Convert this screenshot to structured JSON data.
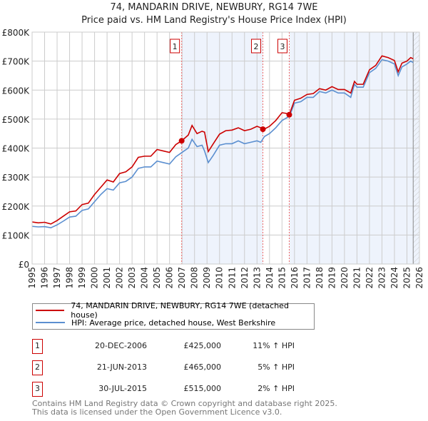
{
  "title": "74, MANDARIN DRIVE, NEWBURY, RG14 7WE",
  "subtitle": "Price paid vs. HM Land Registry's House Price Index (HPI)",
  "chart_data": {
    "type": "line",
    "xlim": [
      1995,
      2026
    ],
    "ylim": [
      0,
      800000
    ],
    "y_ticks": [
      {
        "v": 0,
        "label": "£0"
      },
      {
        "v": 100000,
        "label": "£100K"
      },
      {
        "v": 200000,
        "label": "£200K"
      },
      {
        "v": 300000,
        "label": "£300K"
      },
      {
        "v": 400000,
        "label": "£400K"
      },
      {
        "v": 500000,
        "label": "£500K"
      },
      {
        "v": 600000,
        "label": "£600K"
      },
      {
        "v": 700000,
        "label": "£700K"
      },
      {
        "v": 800000,
        "label": "£800K"
      }
    ],
    "x_ticks": [
      "1995",
      "1996",
      "1997",
      "1998",
      "1999",
      "2000",
      "2001",
      "2002",
      "2003",
      "2004",
      "2005",
      "2006",
      "2007",
      "2008",
      "2009",
      "2010",
      "2011",
      "2012",
      "2013",
      "2014",
      "2015",
      "2016",
      "2017",
      "2018",
      "2019",
      "2020",
      "2021",
      "2022",
      "2023",
      "2024",
      "2025",
      "2026"
    ],
    "grid": true,
    "series": [
      {
        "name": "74, MANDARIN DRIVE, NEWBURY, RG14 7WE (detached house)",
        "color": "#cc0000",
        "x": [
          1995,
          1995.5,
          1996,
          1996.5,
          1997,
          1997.5,
          1998,
          1998.5,
          1999,
          1999.5,
          2000,
          2000.5,
          2001,
          2001.5,
          2002,
          2002.5,
          2003,
          2003.5,
          2004,
          2004.5,
          2005,
          2005.5,
          2006,
          2006.5,
          2006.97,
          2007.5,
          2007.8,
          2008.2,
          2008.6,
          2008.8,
          2009.1,
          2009.5,
          2010,
          2010.5,
          2011,
          2011.5,
          2012,
          2012.5,
          2013,
          2013.3,
          2013.47,
          2013.7,
          2014,
          2014.5,
          2015,
          2015.3,
          2015.58,
          2016,
          2016.5,
          2017,
          2017.5,
          2018,
          2018.5,
          2019,
          2019.5,
          2020,
          2020.5,
          2020.8,
          2021,
          2021.5,
          2022,
          2022.5,
          2023,
          2023.5,
          2024,
          2024.3,
          2024.6,
          2025,
          2025.3,
          2025.5
        ],
        "y": [
          145000,
          142000,
          144000,
          138000,
          150000,
          165000,
          180000,
          183000,
          205000,
          210000,
          240000,
          265000,
          290000,
          283000,
          312000,
          318000,
          335000,
          368000,
          372000,
          372000,
          395000,
          390000,
          385000,
          412000,
          425000,
          445000,
          478000,
          450000,
          458000,
          455000,
          388000,
          415000,
          448000,
          460000,
          462000,
          470000,
          460000,
          465000,
          475000,
          470000,
          465000,
          468000,
          475000,
          495000,
          522000,
          520000,
          515000,
          565000,
          572000,
          585000,
          588000,
          605000,
          600000,
          612000,
          602000,
          602000,
          590000,
          630000,
          620000,
          620000,
          670000,
          685000,
          718000,
          712000,
          702000,
          663000,
          693000,
          700000,
          712000,
          708000
        ]
      },
      {
        "name": "HPI: Average price, detached house, West Berkshire",
        "color": "#5b8fd0",
        "x": [
          1995,
          1995.5,
          1996,
          1996.5,
          1997,
          1997.5,
          1998,
          1998.5,
          1999,
          1999.5,
          2000,
          2000.5,
          2001,
          2001.5,
          2002,
          2002.5,
          2003,
          2003.5,
          2004,
          2004.5,
          2005,
          2005.5,
          2006,
          2006.5,
          2007,
          2007.5,
          2007.8,
          2008.2,
          2008.6,
          2008.8,
          2009.1,
          2009.5,
          2010,
          2010.5,
          2011,
          2011.5,
          2012,
          2012.5,
          2013,
          2013.3,
          2013.6,
          2014,
          2014.5,
          2015,
          2015.6,
          2016,
          2016.5,
          2017,
          2017.5,
          2018,
          2018.5,
          2019,
          2019.5,
          2020,
          2020.5,
          2020.8,
          2021,
          2021.5,
          2022,
          2022.5,
          2023,
          2023.5,
          2024,
          2024.3,
          2024.6,
          2025,
          2025.3,
          2025.5
        ],
        "y": [
          130000,
          128000,
          129000,
          125000,
          135000,
          148000,
          162000,
          165000,
          185000,
          190000,
          215000,
          240000,
          260000,
          255000,
          280000,
          285000,
          300000,
          330000,
          335000,
          335000,
          355000,
          350000,
          345000,
          370000,
          385000,
          400000,
          430000,
          405000,
          410000,
          390000,
          350000,
          375000,
          410000,
          415000,
          415000,
          425000,
          415000,
          420000,
          425000,
          420000,
          440000,
          450000,
          470000,
          495000,
          510000,
          555000,
          560000,
          575000,
          575000,
          595000,
          590000,
          600000,
          590000,
          590000,
          575000,
          620000,
          610000,
          610000,
          660000,
          675000,
          705000,
          700000,
          690000,
          650000,
          680000,
          690000,
          700000,
          695000
        ]
      }
    ],
    "sales": [
      {
        "label": "1",
        "x": 2006.97,
        "y": 425000
      },
      {
        "label": "2",
        "x": 2013.47,
        "y": 465000
      },
      {
        "label": "3",
        "x": 2015.58,
        "y": 515000
      }
    ]
  },
  "legend": [
    {
      "label": "74, MANDARIN DRIVE, NEWBURY, RG14 7WE (detached house)",
      "color": "#cc0000"
    },
    {
      "label": "HPI: Average price, detached house, West Berkshire",
      "color": "#5b8fd0"
    }
  ],
  "transactions": [
    {
      "num": "1",
      "date": "20-DEC-2006",
      "price": "£425,000",
      "hpi": "11% ↑ HPI"
    },
    {
      "num": "2",
      "date": "21-JUN-2013",
      "price": "£465,000",
      "hpi": "5% ↑ HPI"
    },
    {
      "num": "3",
      "date": "30-JUL-2015",
      "price": "£515,000",
      "hpi": "2% ↑ HPI"
    }
  ],
  "footer": [
    "Contains HM Land Registry data © Crown copyright and database right 2025.",
    "This data is licensed under the Open Government Licence v3.0."
  ]
}
